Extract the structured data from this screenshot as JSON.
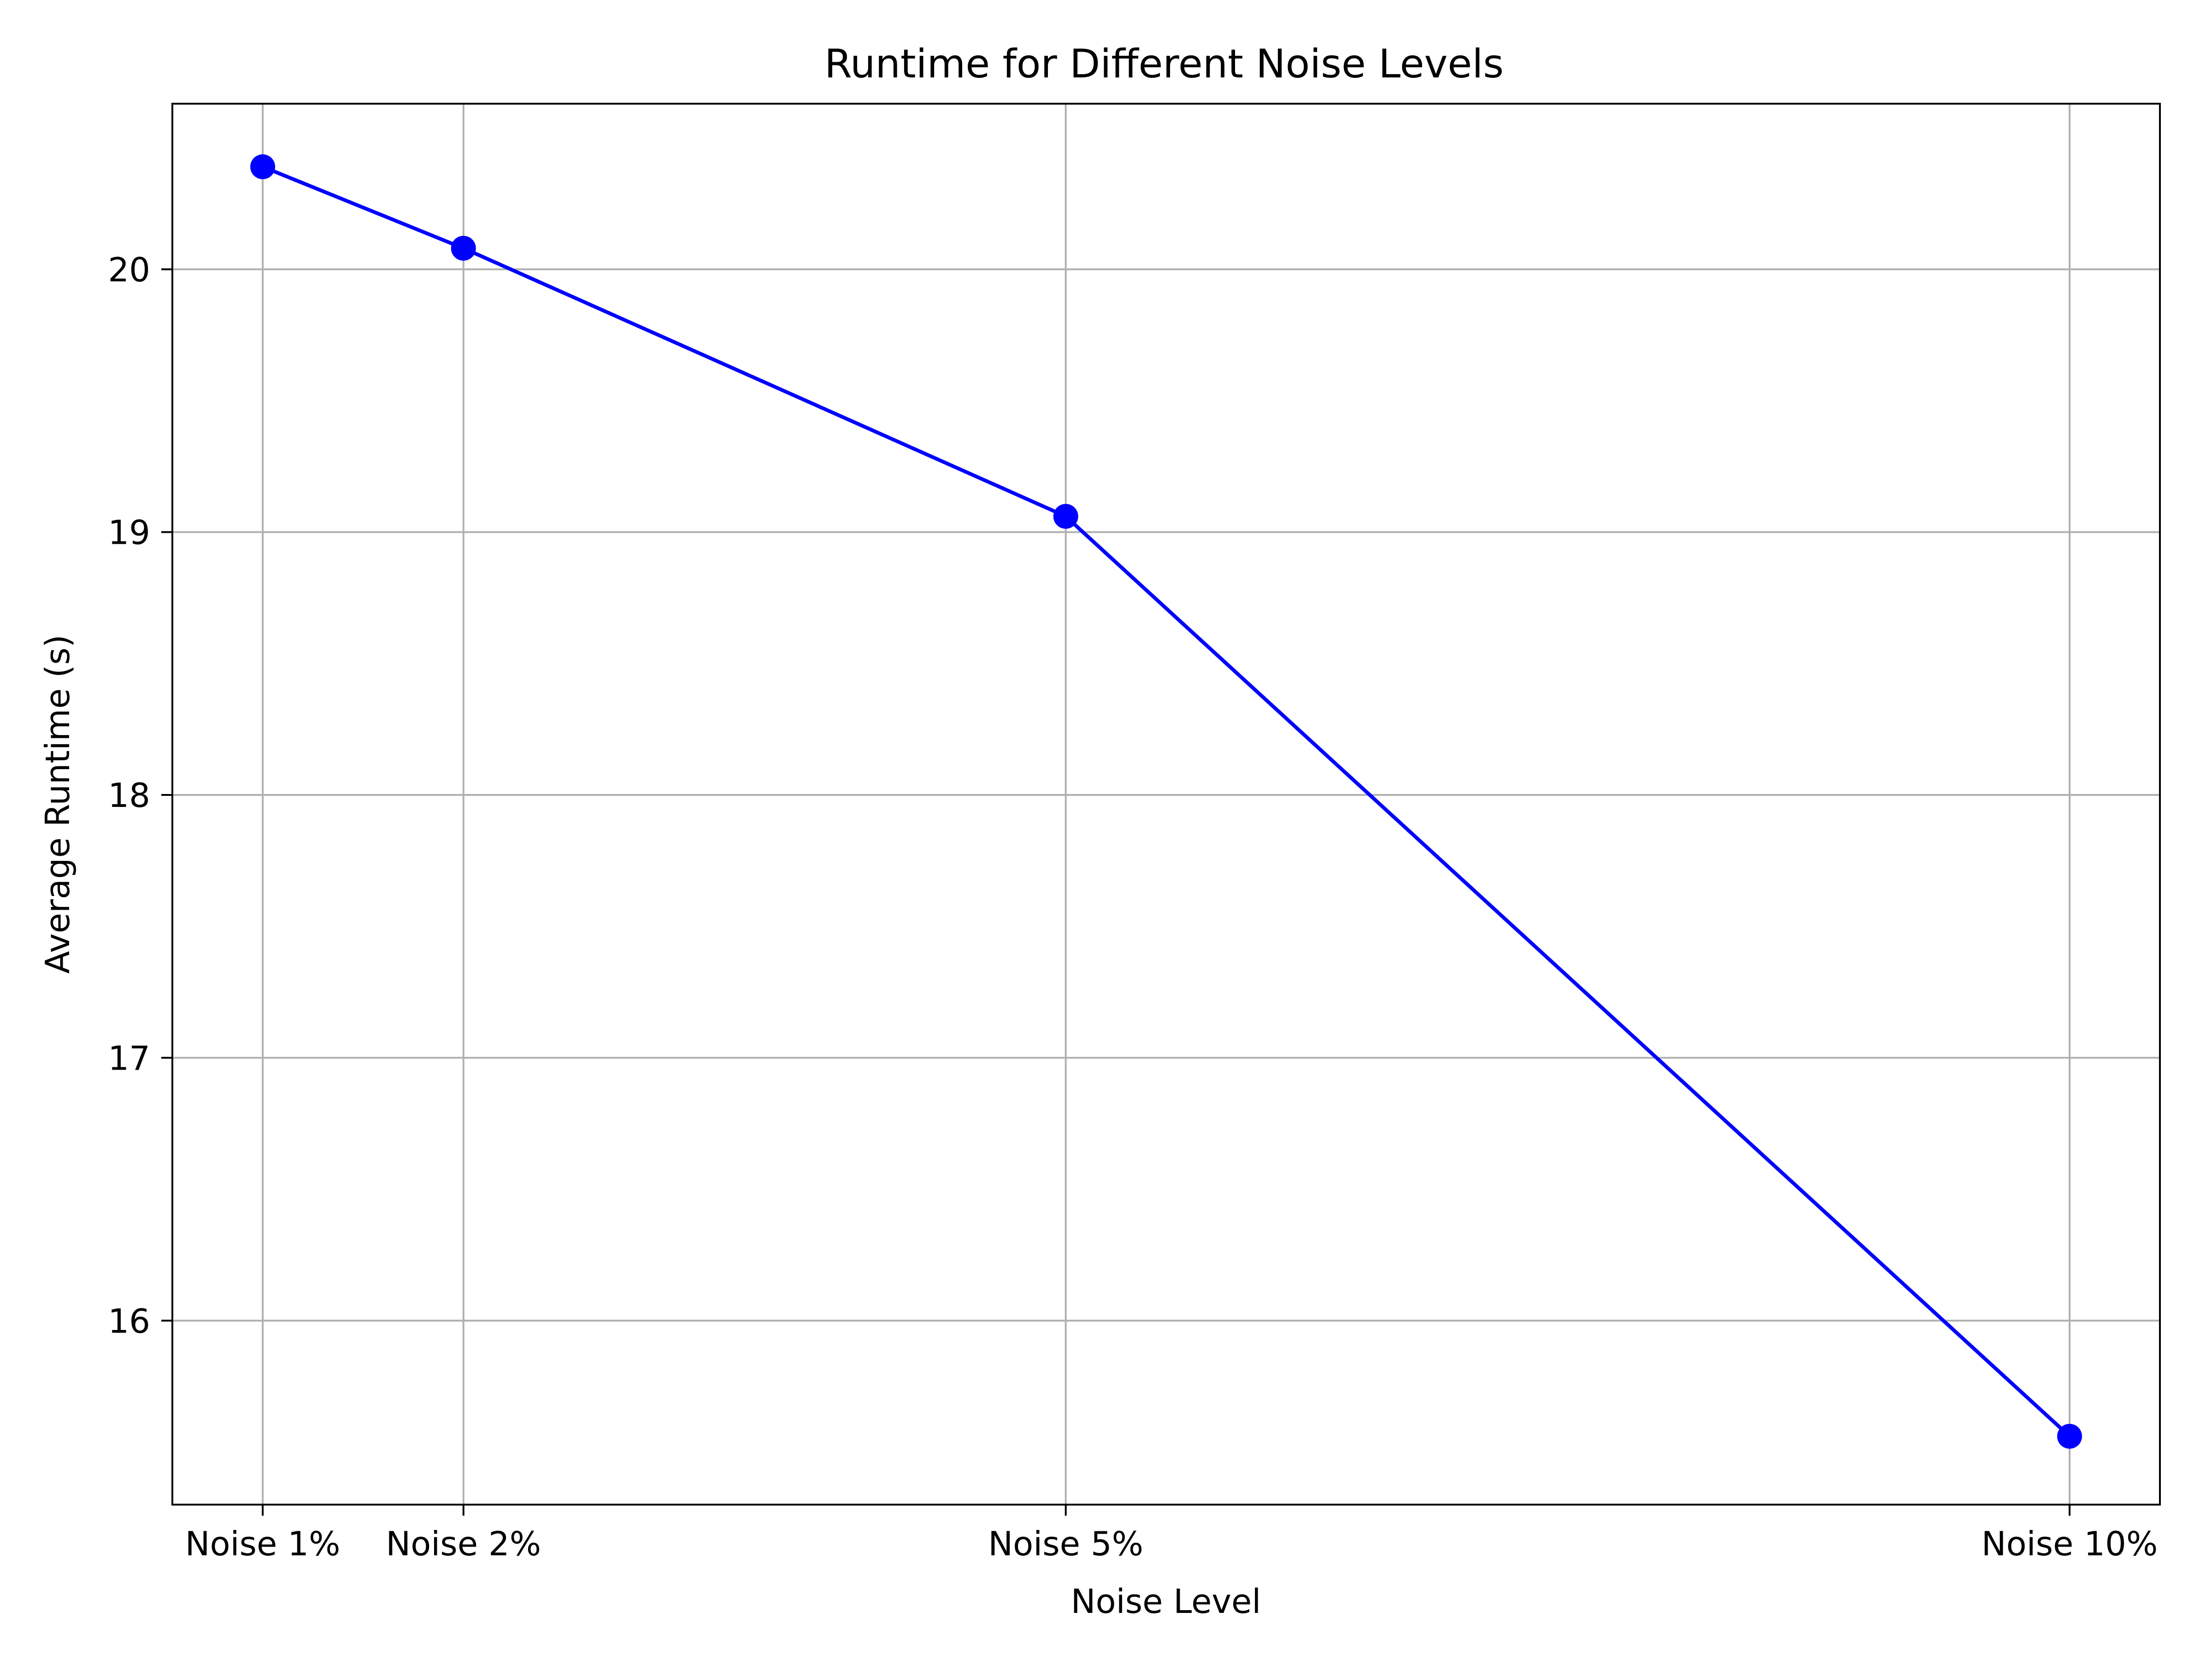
{
  "chart_data": {
    "type": "line",
    "title": "Runtime for Different Noise Levels",
    "xlabel": "Noise Level",
    "ylabel": "Average Runtime (s)",
    "x_numeric": [
      1,
      2,
      5,
      10
    ],
    "x_tick_labels": [
      "Noise 1%",
      "Noise 2%",
      "Noise 5%",
      "Noise 10%"
    ],
    "y_ticks": [
      16,
      17,
      18,
      19,
      20
    ],
    "ylim": [
      15.3,
      20.63
    ],
    "xlim": [
      0.55,
      10.45
    ],
    "grid": true,
    "series": [
      {
        "values": [
          20.39,
          20.08,
          19.06,
          15.56
        ],
        "color": "#0000ff",
        "marker": "circle"
      }
    ]
  }
}
